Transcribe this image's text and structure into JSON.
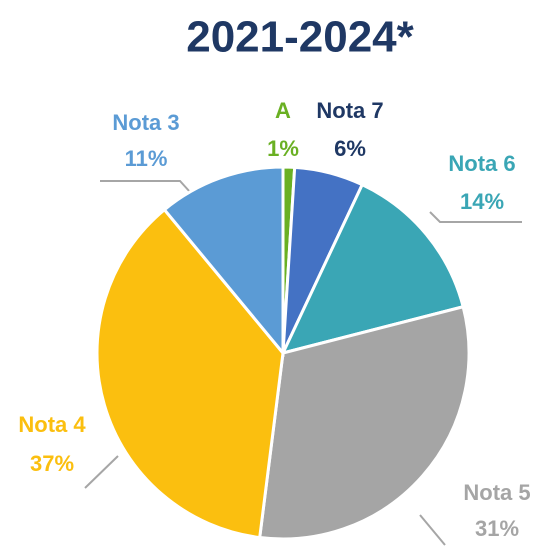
{
  "chart_data": {
    "type": "pie",
    "title": "2021-2024*",
    "categories": [
      "A",
      "Nota 7",
      "Nota 6",
      "Nota 5",
      "Nota 4",
      "Nota 3"
    ],
    "values": [
      1,
      6,
      14,
      31,
      37,
      11
    ],
    "value_labels": [
      "1%",
      "6%",
      "14%",
      "31%",
      "37%",
      "11%"
    ],
    "colors": [
      "#6ab023",
      "#4472c4",
      "#3aa6b5",
      "#a5a5a5",
      "#fbbf0f",
      "#5b9bd5"
    ]
  }
}
